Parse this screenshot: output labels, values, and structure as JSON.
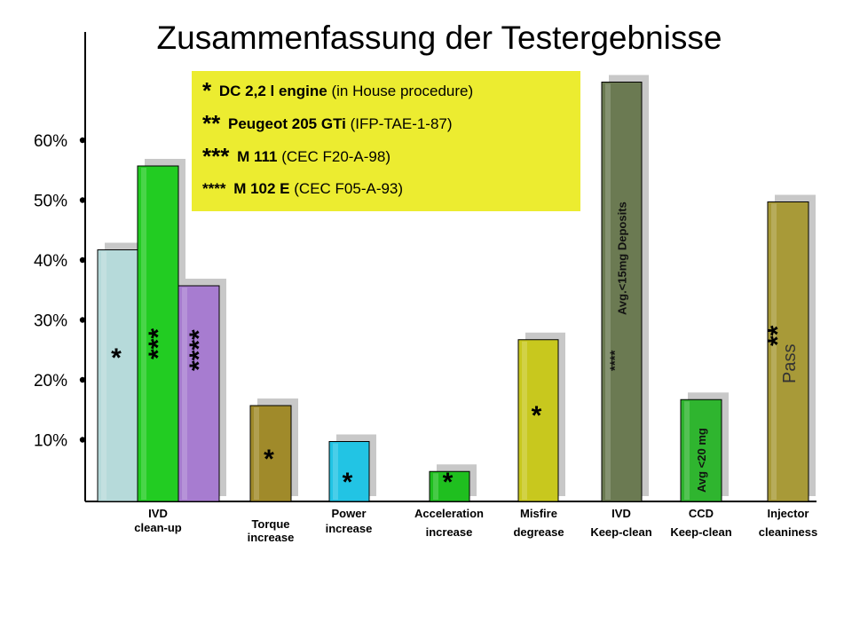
{
  "chart_data": {
    "type": "bar",
    "title": "Zusammenfassung der Testergebnisse",
    "ylim": [
      0,
      75
    ],
    "y_ticks": [
      "10%",
      "20%",
      "30%",
      "40%",
      "50%",
      "60%"
    ],
    "y_tick_values": [
      10,
      20,
      30,
      40,
      50,
      60
    ],
    "legend_placement": "top-center",
    "legend": [
      {
        "marker": "*",
        "name": "DC 2,2 l engine",
        "detail": "(in House procedure)"
      },
      {
        "marker": "**",
        "name": "Peugeot 205 GTi",
        "detail": "(IFP-TAE-1-87)"
      },
      {
        "marker": "***",
        "name": "M 111",
        "detail": "(CEC F20-A-98)"
      },
      {
        "marker": "****",
        "name": "M 102 E",
        "detail": "(CEC F05-A-93)"
      }
    ],
    "groups": [
      {
        "label": [
          "IVD",
          "clean-up"
        ],
        "bars": [
          {
            "value": 42,
            "marker": "*",
            "color": "#b6dada"
          },
          {
            "value": 56,
            "marker": "***",
            "color": "#22cc22"
          },
          {
            "value": 36,
            "marker": "****",
            "color": "#a77cd0"
          }
        ]
      },
      {
        "label": [
          "Torque",
          "increase"
        ],
        "bars": [
          {
            "value": 16,
            "marker": "*",
            "color": "#a08a2a"
          }
        ]
      },
      {
        "label": [
          "Power",
          "increase"
        ],
        "bars": [
          {
            "value": 10,
            "marker": "*",
            "color": "#22c4e4"
          }
        ]
      },
      {
        "label": [
          "Acceleration",
          "increase"
        ],
        "bars": [
          {
            "value": 5,
            "marker": "*",
            "color": "#1fbf1f"
          }
        ]
      },
      {
        "label": [
          "Misfire",
          "degrease"
        ],
        "bars": [
          {
            "value": 27,
            "marker": "*",
            "color": "#c8c81e"
          }
        ]
      },
      {
        "label": [
          "IVD",
          "Keep-clean"
        ],
        "bars": [
          {
            "value": 70,
            "marker": "****",
            "annotation": "Avg.<15mg Deposits",
            "color": "#6b7a52"
          }
        ]
      },
      {
        "label": [
          "CCD",
          "Keep-clean"
        ],
        "bars": [
          {
            "value": 17,
            "marker": "",
            "annotation": "Avg <20 mg",
            "color": "#2fb52f"
          }
        ]
      },
      {
        "label": [
          "Injector",
          "cleaniness"
        ],
        "bars": [
          {
            "value": 50,
            "marker": "**",
            "annotation": "Pass",
            "color": "#a89a38"
          }
        ]
      }
    ]
  }
}
